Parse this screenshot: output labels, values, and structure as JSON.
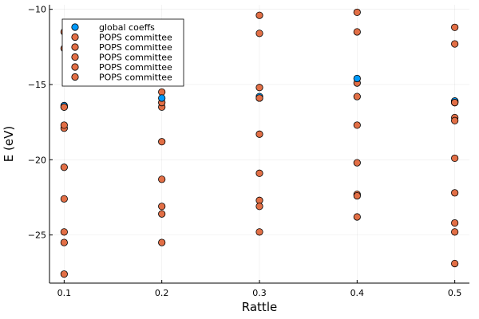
{
  "chart_data": {
    "type": "scatter",
    "xlabel": "Rattle",
    "ylabel": "E (eV)",
    "xlim": [
      0.085,
      0.515
    ],
    "ylim": [
      -28.2,
      -9.7
    ],
    "xticks": [
      0.1,
      0.2,
      0.3,
      0.4,
      0.5
    ],
    "xtick_labels": [
      "0.1",
      "0.2",
      "0.3",
      "0.4",
      "0.5"
    ],
    "yticks": [
      -25,
      -20,
      -15,
      -10
    ],
    "ytick_labels": [
      "−25",
      "−20",
      "−15",
      "−10"
    ],
    "grid": true,
    "legend_position": "top-left",
    "colors": {
      "global": "#009AFA",
      "pops": "#E26F46"
    },
    "series": [
      {
        "name": "global coeffs",
        "color": "#009AFA",
        "x": [
          0.1,
          0.2,
          0.3,
          0.4,
          0.5
        ],
        "y": [
          -16.4,
          -15.9,
          -15.8,
          -14.6,
          -16.1
        ]
      },
      {
        "name": "POPS committee",
        "color": "#E26F46",
        "x": [
          0.1,
          0.2,
          0.3,
          0.4,
          0.5
        ],
        "y": [
          -11.5,
          -16.5,
          -10.4,
          -10.2,
          -16.2
        ]
      },
      {
        "name": "POPS committee",
        "color": "#E26F46",
        "x": [
          0.1,
          0.2,
          0.3,
          0.4,
          0.5
        ],
        "y": [
          -12.6,
          -18.8,
          -11.6,
          -11.5,
          -17.2
        ]
      },
      {
        "name": "POPS committee",
        "color": "#E26F46",
        "x": [
          0.1,
          0.2,
          0.3,
          0.4,
          0.5
        ],
        "y": [
          -16.5,
          -21.3,
          -15.9,
          -15.8,
          -19.9
        ]
      },
      {
        "name": "POPS committee",
        "color": "#E26F46",
        "x": [
          0.1,
          0.2,
          0.3,
          0.4,
          0.5
        ],
        "y": [
          -17.9,
          -23.6,
          -18.3,
          -17.7,
          -22.2
        ]
      },
      {
        "name": "POPS committee",
        "color": "#E26F46",
        "x": [
          0.1,
          0.2,
          0.3,
          0.4,
          0.5
        ],
        "y": [
          -24.8,
          -25.5,
          -24.8,
          -23.8,
          -26.9
        ]
      }
    ],
    "extra_points": [
      [
        0.1,
        -17.7
      ],
      [
        0.1,
        -20.5
      ],
      [
        0.1,
        -22.6
      ],
      [
        0.1,
        -25.5
      ],
      [
        0.1,
        -27.6
      ],
      [
        0.2,
        -15.5
      ],
      [
        0.2,
        -16.2
      ],
      [
        0.2,
        -23.1
      ],
      [
        0.3,
        -15.2
      ],
      [
        0.3,
        -20.9
      ],
      [
        0.3,
        -22.7
      ],
      [
        0.3,
        -23.1
      ],
      [
        0.4,
        -14.9
      ],
      [
        0.4,
        -20.2
      ],
      [
        0.4,
        -22.3
      ],
      [
        0.4,
        -22.4
      ],
      [
        0.5,
        -11.2
      ],
      [
        0.5,
        -12.3
      ],
      [
        0.5,
        -16.1
      ],
      [
        0.5,
        -17.4
      ],
      [
        0.5,
        -24.2
      ],
      [
        0.5,
        -24.8
      ]
    ]
  }
}
